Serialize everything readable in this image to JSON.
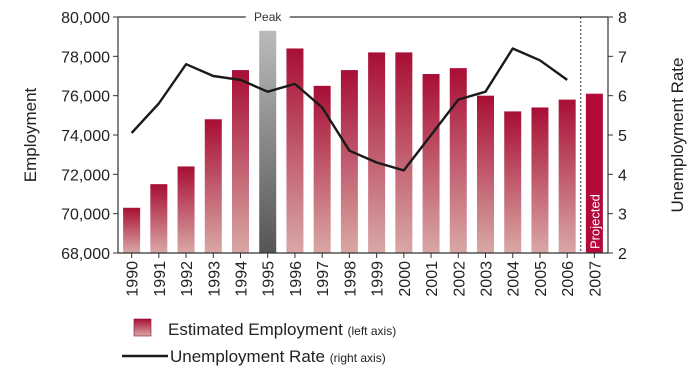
{
  "chart_data": {
    "type": "bar",
    "categories": [
      "1990",
      "1991",
      "1992",
      "1993",
      "1994",
      "1995",
      "1996",
      "1997",
      "1998",
      "1999",
      "2000",
      "2001",
      "2002",
      "2003",
      "2004",
      "2005",
      "2006",
      "2007"
    ],
    "series": [
      {
        "name": "Estimated Employment",
        "axis": "left",
        "type": "bar",
        "values": [
          70300,
          71500,
          72400,
          74800,
          77300,
          79300,
          78400,
          76500,
          77300,
          78200,
          78200,
          77100,
          77400,
          76000,
          75200,
          75400,
          75800,
          76100
        ]
      },
      {
        "name": "Unemployment Rate",
        "axis": "right",
        "type": "line",
        "x": [
          "1990",
          "1991",
          "1992",
          "1993",
          "1994",
          "1995",
          "1996",
          "1997",
          "1998",
          "1999",
          "2000",
          "2001",
          "2002",
          "2003",
          "2004",
          "2005",
          "2006"
        ],
        "values": [
          5.05,
          5.8,
          6.8,
          6.5,
          6.4,
          6.1,
          6.3,
          5.7,
          4.6,
          4.3,
          4.1,
          5.0,
          5.9,
          6.1,
          7.2,
          6.9,
          6.4
        ]
      }
    ],
    "ylabel": "Employment",
    "y2label": "Unemployment Rate",
    "ylim": [
      68000,
      80000
    ],
    "y2lim": [
      2,
      8
    ],
    "yticks": [
      "68,000",
      "70,000",
      "72,000",
      "74,000",
      "76,000",
      "78,000",
      "80,000"
    ],
    "y2ticks": [
      "2",
      "3",
      "4",
      "5",
      "6",
      "7",
      "8"
    ],
    "peak_category": "1995",
    "peak_label": "Peak",
    "projected_category": "2007",
    "projected_label": "Projected",
    "legend": [
      {
        "name": "Estimated Employment",
        "note": "(left axis)",
        "marker": "bar"
      },
      {
        "name": "Unemployment Rate",
        "note": "(right axis)",
        "marker": "line"
      }
    ],
    "legend_position": "bottom",
    "colors": {
      "bar_dark": "#a80e34",
      "bar_light": "#d9a8a6",
      "peak_dark": "#555555",
      "peak_light": "#bbbbbb",
      "projected": "#b40a3a",
      "line": "#1a1a1a"
    },
    "grid": false
  }
}
